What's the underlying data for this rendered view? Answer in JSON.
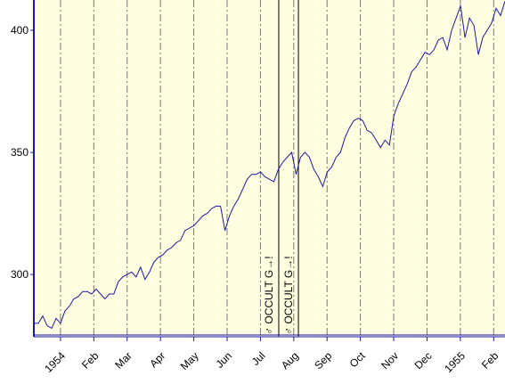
{
  "chart_data": {
    "type": "line",
    "series": [
      {
        "color": "#1a1aa0",
        "values": [
          280,
          280,
          283,
          279,
          278,
          282,
          280,
          285,
          287,
          290,
          291,
          293,
          293,
          292,
          294,
          292,
          290,
          292,
          292,
          297,
          299,
          300,
          301,
          299,
          303,
          298,
          301,
          305,
          307,
          308,
          310,
          311,
          313,
          314,
          318,
          319,
          320,
          322,
          324,
          325,
          327,
          328,
          328,
          318,
          324,
          328,
          331,
          335,
          339,
          341,
          341,
          342,
          340,
          339,
          338,
          343,
          346,
          348,
          350,
          341,
          348,
          350,
          348,
          343,
          340,
          336,
          342,
          344,
          348,
          350,
          356,
          360,
          363,
          364,
          363,
          359,
          358,
          355,
          352,
          355,
          353,
          365,
          370,
          374,
          378,
          383,
          385,
          388,
          391,
          390,
          392,
          396,
          397,
          392,
          400,
          405,
          410,
          397,
          405,
          402,
          390,
          397,
          400,
          403,
          409,
          406,
          412
        ]
      }
    ],
    "xlim": [
      -0.8,
      13.34
    ],
    "xticks": [
      {
        "value": 0,
        "label": "1954"
      },
      {
        "value": 1,
        "label": "Feb"
      },
      {
        "value": 2,
        "label": "Mar"
      },
      {
        "value": 3,
        "label": "Apr"
      },
      {
        "value": 4,
        "label": "May"
      },
      {
        "value": 5,
        "label": "Jun"
      },
      {
        "value": 6,
        "label": "Jul"
      },
      {
        "value": 7,
        "label": "Aug"
      },
      {
        "value": 8,
        "label": "Sep"
      },
      {
        "value": 9,
        "label": "Oct"
      },
      {
        "value": 10,
        "label": "Nov"
      },
      {
        "value": 11,
        "label": "Dec"
      },
      {
        "value": 12,
        "label": "1955"
      },
      {
        "value": 13,
        "label": "Feb"
      }
    ],
    "ylim": [
      274.5,
      412.4
    ],
    "yticks": [
      300,
      350,
      400
    ],
    "grid": true,
    "annotations": [
      {
        "x": 6.55,
        "text": "♂ OCCULT G→!"
      },
      {
        "x": 7.14,
        "text": "♂ OCCULT G→!"
      }
    ]
  }
}
